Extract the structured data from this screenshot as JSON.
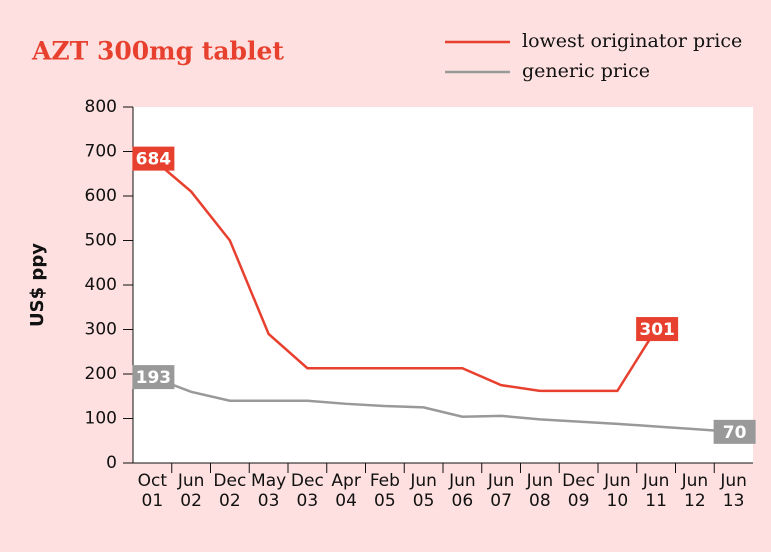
{
  "chart_data": {
    "type": "line",
    "title": "AZT 300mg tablet",
    "y_label": "US$ ppy",
    "categories": [
      "Oct 01",
      "Jun 02",
      "Dec 02",
      "May 03",
      "Dec 03",
      "Apr 04",
      "Feb 05",
      "Jun 05",
      "Jun 06",
      "Jun 07",
      "Jun 08",
      "Dec 09",
      "Jun 10",
      "Jun 11",
      "Jun 12",
      "Jun 13"
    ],
    "series": [
      {
        "name": "lowest originator price",
        "color": "#e8402f",
        "values": [
          684,
          610,
          500,
          290,
          213,
          213,
          213,
          213,
          213,
          175,
          162,
          162,
          162,
          301,
          null,
          null
        ]
      },
      {
        "name": "generic price",
        "color": "#999999",
        "values": [
          193,
          160,
          140,
          140,
          140,
          133,
          128,
          125,
          104,
          106,
          98,
          93,
          88,
          82,
          76,
          70
        ]
      }
    ],
    "ylim": [
      0,
      800
    ],
    "yticks": [
      0,
      100,
      200,
      300,
      400,
      500,
      600,
      700,
      800
    ],
    "legend": "top-right"
  }
}
